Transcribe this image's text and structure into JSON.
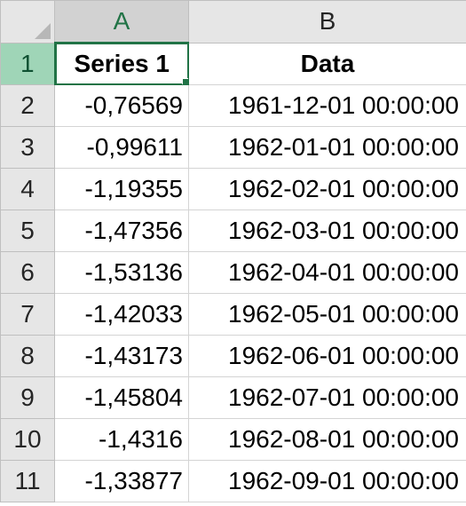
{
  "columns": {
    "a": "A",
    "b": "B"
  },
  "headers": {
    "a": "Series 1",
    "b": "Data"
  },
  "rows": [
    {
      "num": "1"
    },
    {
      "num": "2",
      "a": "-0,76569",
      "b": "1961-12-01 00:00:00"
    },
    {
      "num": "3",
      "a": "-0,99611",
      "b": "1962-01-01 00:00:00"
    },
    {
      "num": "4",
      "a": "-1,19355",
      "b": "1962-02-01 00:00:00"
    },
    {
      "num": "5",
      "a": "-1,47356",
      "b": "1962-03-01 00:00:00"
    },
    {
      "num": "6",
      "a": "-1,53136",
      "b": "1962-04-01 00:00:00"
    },
    {
      "num": "7",
      "a": "-1,42033",
      "b": "1962-05-01 00:00:00"
    },
    {
      "num": "8",
      "a": "-1,43173",
      "b": "1962-06-01 00:00:00"
    },
    {
      "num": "9",
      "a": "-1,45804",
      "b": "1962-07-01 00:00:00"
    },
    {
      "num": "10",
      "a": "-1,4316",
      "b": "1962-08-01 00:00:00"
    },
    {
      "num": "11",
      "a": "-1,33877",
      "b": "1962-09-01 00:00:00"
    }
  ],
  "colors": {
    "accent": "#217346",
    "active_row_header": "#9fd5b7",
    "header_bg": "#e6e6e6",
    "gridline": "#d4d4d4"
  }
}
